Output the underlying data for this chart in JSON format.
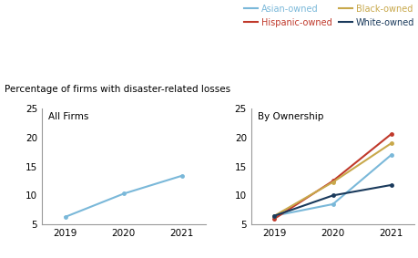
{
  "years": [
    2019,
    2020,
    2021
  ],
  "all_firms": [
    6.3,
    10.3,
    13.4
  ],
  "asian_owned": [
    6.5,
    8.5,
    17.0
  ],
  "hispanic_owned": [
    6.0,
    12.5,
    20.6
  ],
  "black_owned": [
    6.5,
    12.3,
    19.0
  ],
  "white_owned": [
    6.5,
    10.0,
    11.8
  ],
  "all_firms_color": "#7ab8d9",
  "asian_color": "#7ab8d9",
  "hispanic_color": "#c0392b",
  "black_color": "#c8a84b",
  "white_color": "#1a3a5c",
  "suptitle": "Percentage of firms with disaster-related losses",
  "left_label": "All Firms",
  "right_label": "By Ownership",
  "ylim": [
    5,
    25
  ],
  "yticks": [
    5,
    10,
    15,
    20,
    25
  ],
  "legend_items": [
    {
      "label": "Asian-owned",
      "color": "#7ab8d9"
    },
    {
      "label": "Hispanic-owned",
      "color": "#c0392b"
    },
    {
      "label": "Black-owned",
      "color": "#c8a84b"
    },
    {
      "label": "White-owned",
      "color": "#1a3a5c"
    }
  ]
}
